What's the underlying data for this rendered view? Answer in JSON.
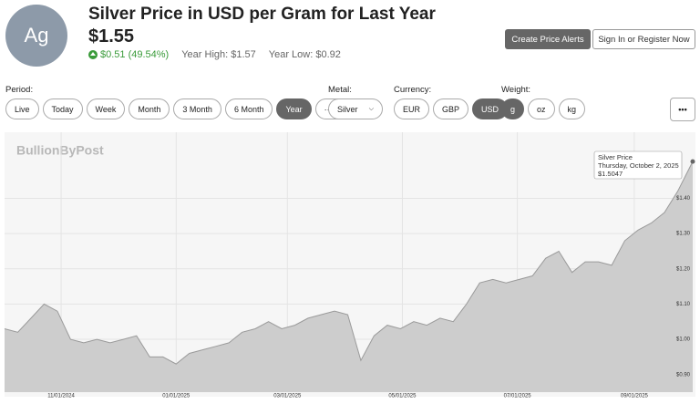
{
  "header": {
    "badge": "Ag",
    "title": "Silver Price in USD per Gram for Last Year",
    "price": "$1.55",
    "change": "$0.51 (49.54%)",
    "year_high": "Year High: $1.57",
    "year_low": "Year Low: $0.92",
    "alerts_button": "Create Price Alerts",
    "signin_button": "Sign In or Register Now"
  },
  "controls": {
    "period": {
      "label": "Period:",
      "options": [
        "Live",
        "Today",
        "Week",
        "Month",
        "3 Month",
        "6 Month",
        "Year"
      ],
      "active": 6,
      "more": "···"
    },
    "metal": {
      "label": "Metal:",
      "value": "Silver"
    },
    "currency": {
      "label": "Currency:",
      "options": [
        "EUR",
        "GBP",
        "USD"
      ],
      "active": 2
    },
    "weight": {
      "label": "Weight:",
      "options": [
        "g",
        "oz",
        "kg"
      ],
      "active": 0
    },
    "menu": "•••"
  },
  "chart_data": {
    "type": "area",
    "watermark": "BullionByPost",
    "x": [
      "2024-10-02",
      "2024-10-09",
      "2024-10-16",
      "2024-10-23",
      "2024-10-30",
      "2024-11-06",
      "2024-11-13",
      "2024-11-20",
      "2024-11-27",
      "2024-12-04",
      "2024-12-11",
      "2024-12-18",
      "2024-12-25",
      "2025-01-01",
      "2025-01-08",
      "2025-01-15",
      "2025-01-22",
      "2025-01-29",
      "2025-02-05",
      "2025-02-12",
      "2025-02-19",
      "2025-02-26",
      "2025-03-05",
      "2025-03-12",
      "2025-03-19",
      "2025-03-26",
      "2025-04-02",
      "2025-04-09",
      "2025-04-16",
      "2025-04-23",
      "2025-04-30",
      "2025-05-07",
      "2025-05-14",
      "2025-05-21",
      "2025-05-28",
      "2025-06-04",
      "2025-06-11",
      "2025-06-18",
      "2025-06-25",
      "2025-07-02",
      "2025-07-09",
      "2025-07-16",
      "2025-07-23",
      "2025-07-30",
      "2025-08-06",
      "2025-08-13",
      "2025-08-20",
      "2025-08-27",
      "2025-09-03",
      "2025-09-10",
      "2025-09-17",
      "2025-09-24",
      "2025-10-02"
    ],
    "series": [
      {
        "name": "Silver Price",
        "color": "#9a9a9a",
        "fill": "#cdcdcd",
        "values": [
          1.03,
          1.02,
          1.06,
          1.1,
          1.08,
          1.0,
          0.99,
          1.0,
          0.99,
          1.0,
          1.01,
          0.95,
          0.95,
          0.93,
          0.96,
          0.97,
          0.98,
          0.99,
          1.02,
          1.03,
          1.05,
          1.03,
          1.04,
          1.06,
          1.07,
          1.08,
          1.07,
          0.94,
          1.01,
          1.04,
          1.03,
          1.05,
          1.04,
          1.06,
          1.05,
          1.1,
          1.16,
          1.17,
          1.16,
          1.17,
          1.18,
          1.23,
          1.25,
          1.19,
          1.22,
          1.22,
          1.21,
          1.28,
          1.31,
          1.33,
          1.36,
          1.42,
          1.5047
        ]
      }
    ],
    "xlim": [
      "2024-10-02",
      "2025-10-02"
    ],
    "xticks": [
      {
        "value": "2024-11-01",
        "label": "11/01/2024"
      },
      {
        "value": "2025-01-01",
        "label": "01/01/2025"
      },
      {
        "value": "2025-03-01",
        "label": "03/01/2025"
      },
      {
        "value": "2025-05-01",
        "label": "05/01/2025"
      },
      {
        "value": "2025-07-01",
        "label": "07/01/2025"
      },
      {
        "value": "2025-09-01",
        "label": "09/01/2025"
      }
    ],
    "ylim": [
      0.85,
      1.58
    ],
    "yticks": [
      {
        "value": 0.9,
        "label": "$0.90"
      },
      {
        "value": 1.0,
        "label": "$1.00"
      },
      {
        "value": 1.1,
        "label": "$1.10"
      },
      {
        "value": 1.2,
        "label": "$1.20"
      },
      {
        "value": 1.3,
        "label": "$1.30"
      },
      {
        "value": 1.4,
        "label": "$1.40"
      }
    ],
    "grid": true,
    "tooltip": {
      "date": "Thursday, October 2, 2025",
      "value_label": "$1.5047"
    }
  }
}
